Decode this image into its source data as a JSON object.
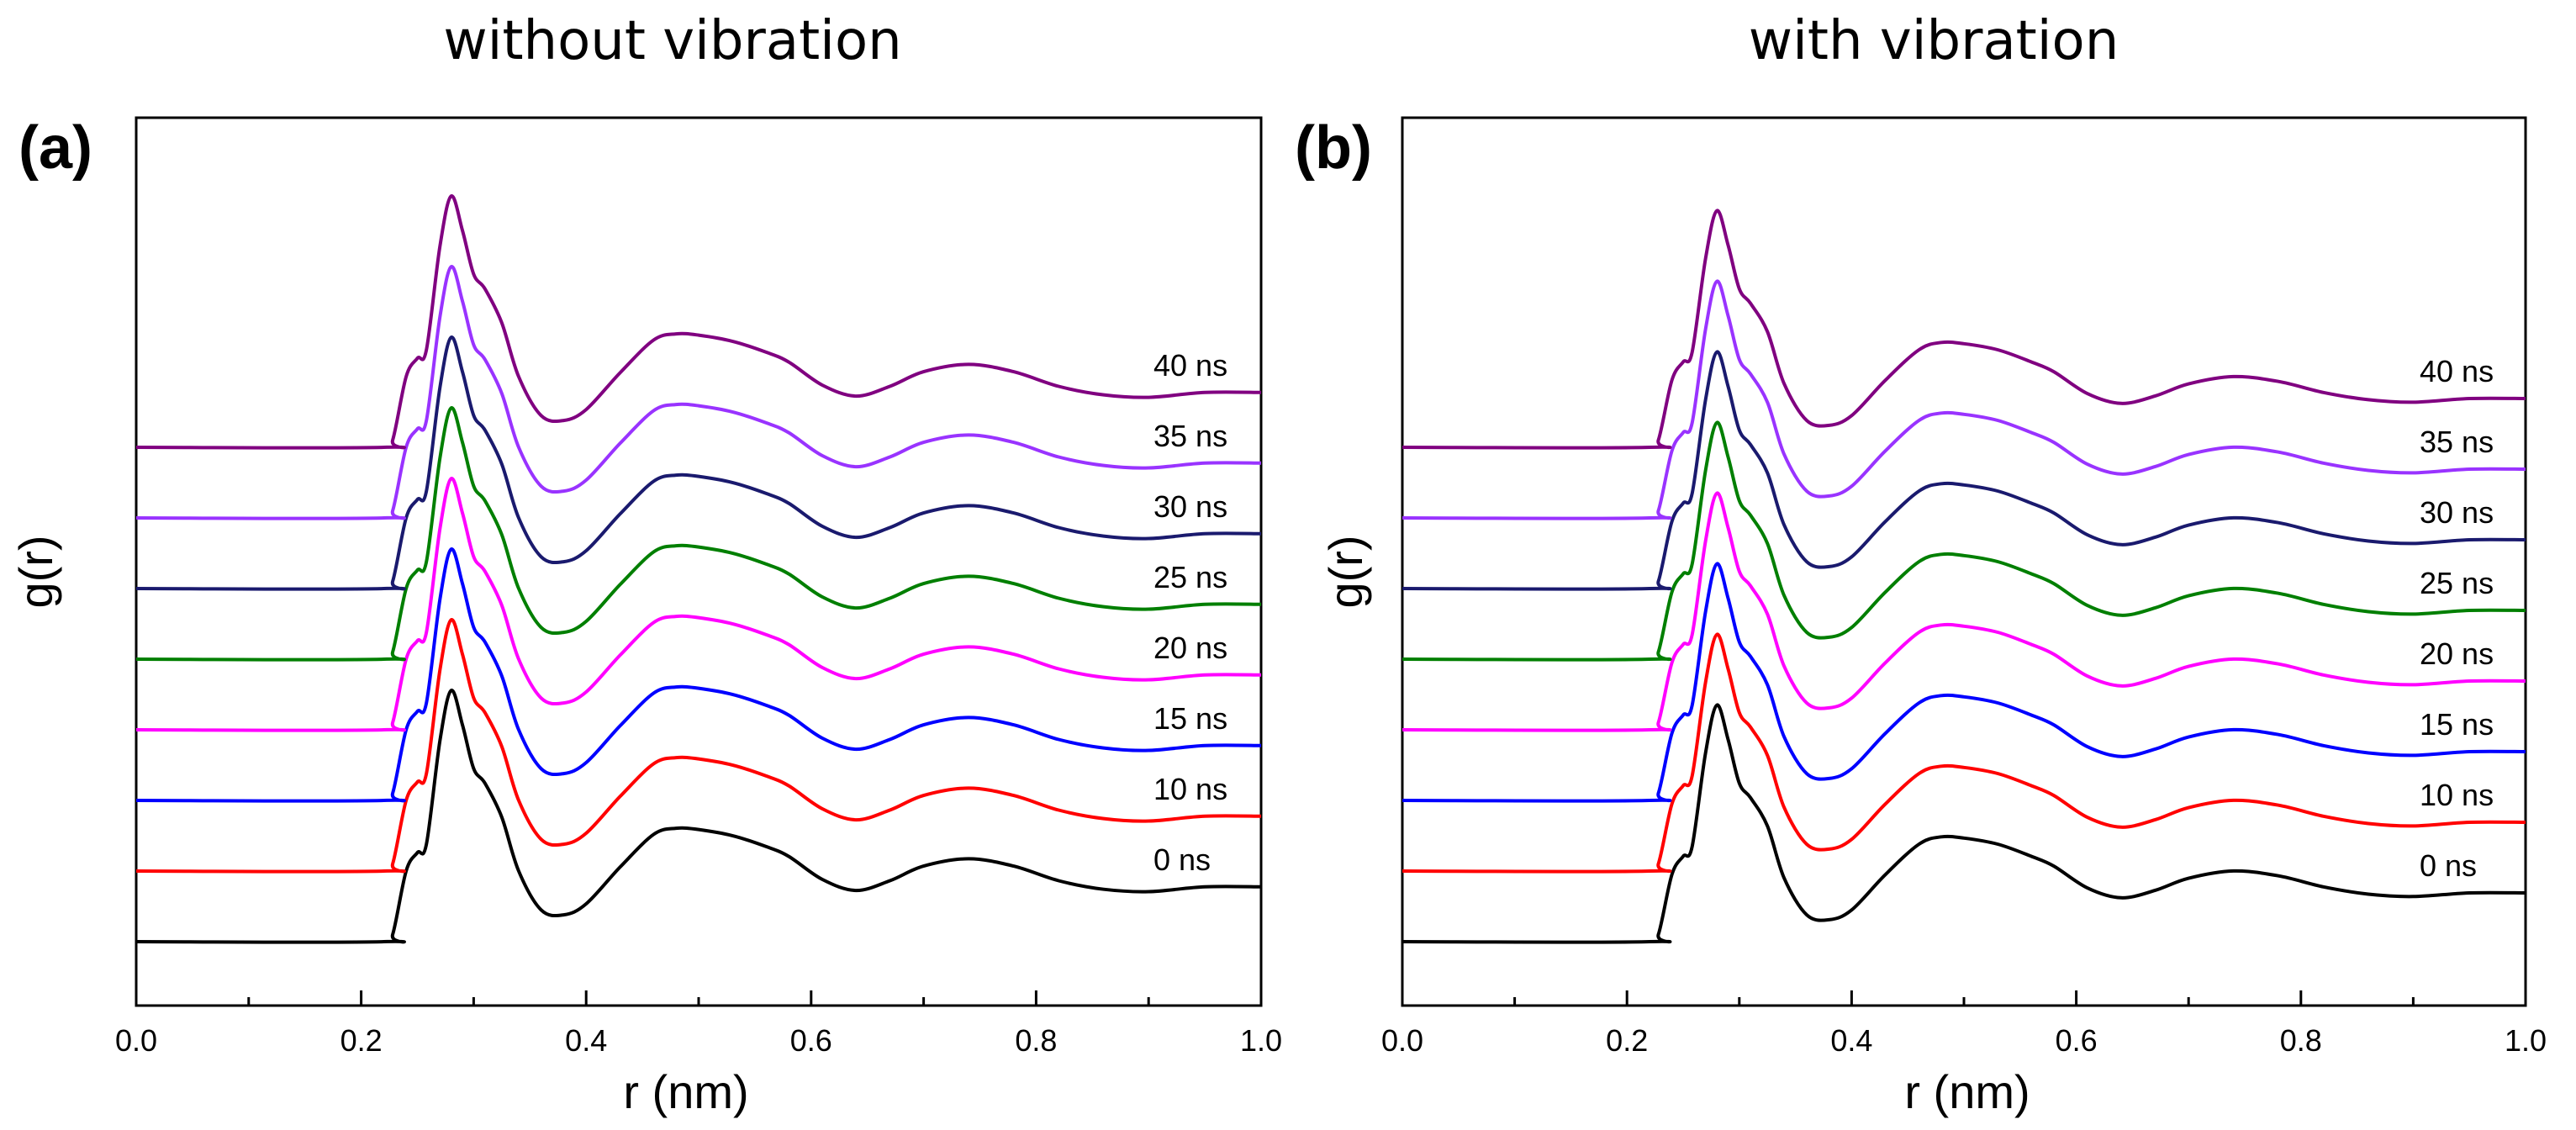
{
  "chart_data": [
    {
      "type": "line",
      "panel_label": "(a)",
      "title": "without vibration",
      "xlabel": "r (nm)",
      "ylabel": "g(r)",
      "xlim": [
        0.0,
        1.0
      ],
      "x_ticks": [
        "0.0",
        "0.2",
        "0.4",
        "0.6",
        "0.8",
        "1.0"
      ],
      "grid": false,
      "y_ticks_shown": false,
      "series": [
        {
          "name": "0 ns",
          "color": "#000000",
          "offset": 0
        },
        {
          "name": "10 ns",
          "color": "#ff0000",
          "offset": 1
        },
        {
          "name": "15 ns",
          "color": "#0000ff",
          "offset": 2
        },
        {
          "name": "20 ns",
          "color": "#ff00ff",
          "offset": 3
        },
        {
          "name": "25 ns",
          "color": "#007f00",
          "offset": 4
        },
        {
          "name": "30 ns",
          "color": "#1a1a6e",
          "offset": 5
        },
        {
          "name": "35 ns",
          "color": "#9933ff",
          "offset": 6
        },
        {
          "name": "40 ns",
          "color": "#800080",
          "offset": 7
        }
      ],
      "profile": {
        "x": [
          0.0,
          0.22,
          0.228,
          0.24,
          0.25,
          0.258,
          0.27,
          0.28,
          0.29,
          0.3,
          0.31,
          0.325,
          0.34,
          0.36,
          0.38,
          0.4,
          0.43,
          0.46,
          0.48,
          0.5,
          0.53,
          0.56,
          0.58,
          0.61,
          0.64,
          0.67,
          0.7,
          0.74,
          0.78,
          0.82,
          0.86,
          0.9,
          0.95,
          1.0
        ],
        "y": [
          0.0,
          0.0,
          0.06,
          0.58,
          0.73,
          0.8,
          1.65,
          2.06,
          1.78,
          1.42,
          1.3,
          1.02,
          0.58,
          0.26,
          0.22,
          0.31,
          0.61,
          0.88,
          0.93,
          0.92,
          0.87,
          0.78,
          0.7,
          0.51,
          0.42,
          0.5,
          0.62,
          0.68,
          0.62,
          0.5,
          0.43,
          0.41,
          0.45,
          0.45
        ]
      }
    },
    {
      "type": "line",
      "panel_label": "(b)",
      "title": "with vibration",
      "xlabel": "r (nm)",
      "ylabel": "g(r)",
      "xlim": [
        0.0,
        1.0
      ],
      "x_ticks": [
        "0.0",
        "0.2",
        "0.4",
        "0.6",
        "0.8",
        "1.0"
      ],
      "grid": false,
      "y_ticks_shown": false,
      "series": [
        {
          "name": "0 ns",
          "color": "#000000",
          "offset": 0
        },
        {
          "name": "10 ns",
          "color": "#ff0000",
          "offset": 1
        },
        {
          "name": "15 ns",
          "color": "#0000ff",
          "offset": 2
        },
        {
          "name": "20 ns",
          "color": "#ff00ff",
          "offset": 3
        },
        {
          "name": "25 ns",
          "color": "#007f00",
          "offset": 4
        },
        {
          "name": "30 ns",
          "color": "#1a1a6e",
          "offset": 5
        },
        {
          "name": "35 ns",
          "color": "#9933ff",
          "offset": 6
        },
        {
          "name": "40 ns",
          "color": "#800080",
          "offset": 7
        }
      ],
      "profile": {
        "x": [
          0.0,
          0.22,
          0.228,
          0.24,
          0.25,
          0.258,
          0.27,
          0.28,
          0.29,
          0.3,
          0.31,
          0.325,
          0.34,
          0.36,
          0.38,
          0.4,
          0.43,
          0.46,
          0.48,
          0.5,
          0.53,
          0.56,
          0.58,
          0.61,
          0.64,
          0.67,
          0.7,
          0.74,
          0.78,
          0.82,
          0.86,
          0.9,
          0.95,
          1.0
        ],
        "y": [
          0.0,
          0.0,
          0.06,
          0.55,
          0.7,
          0.78,
          1.55,
          1.94,
          1.66,
          1.3,
          1.18,
          0.95,
          0.52,
          0.22,
          0.18,
          0.26,
          0.55,
          0.8,
          0.86,
          0.85,
          0.8,
          0.7,
          0.62,
          0.44,
          0.36,
          0.42,
          0.52,
          0.58,
          0.54,
          0.45,
          0.39,
          0.37,
          0.4,
          0.4
        ]
      }
    }
  ]
}
